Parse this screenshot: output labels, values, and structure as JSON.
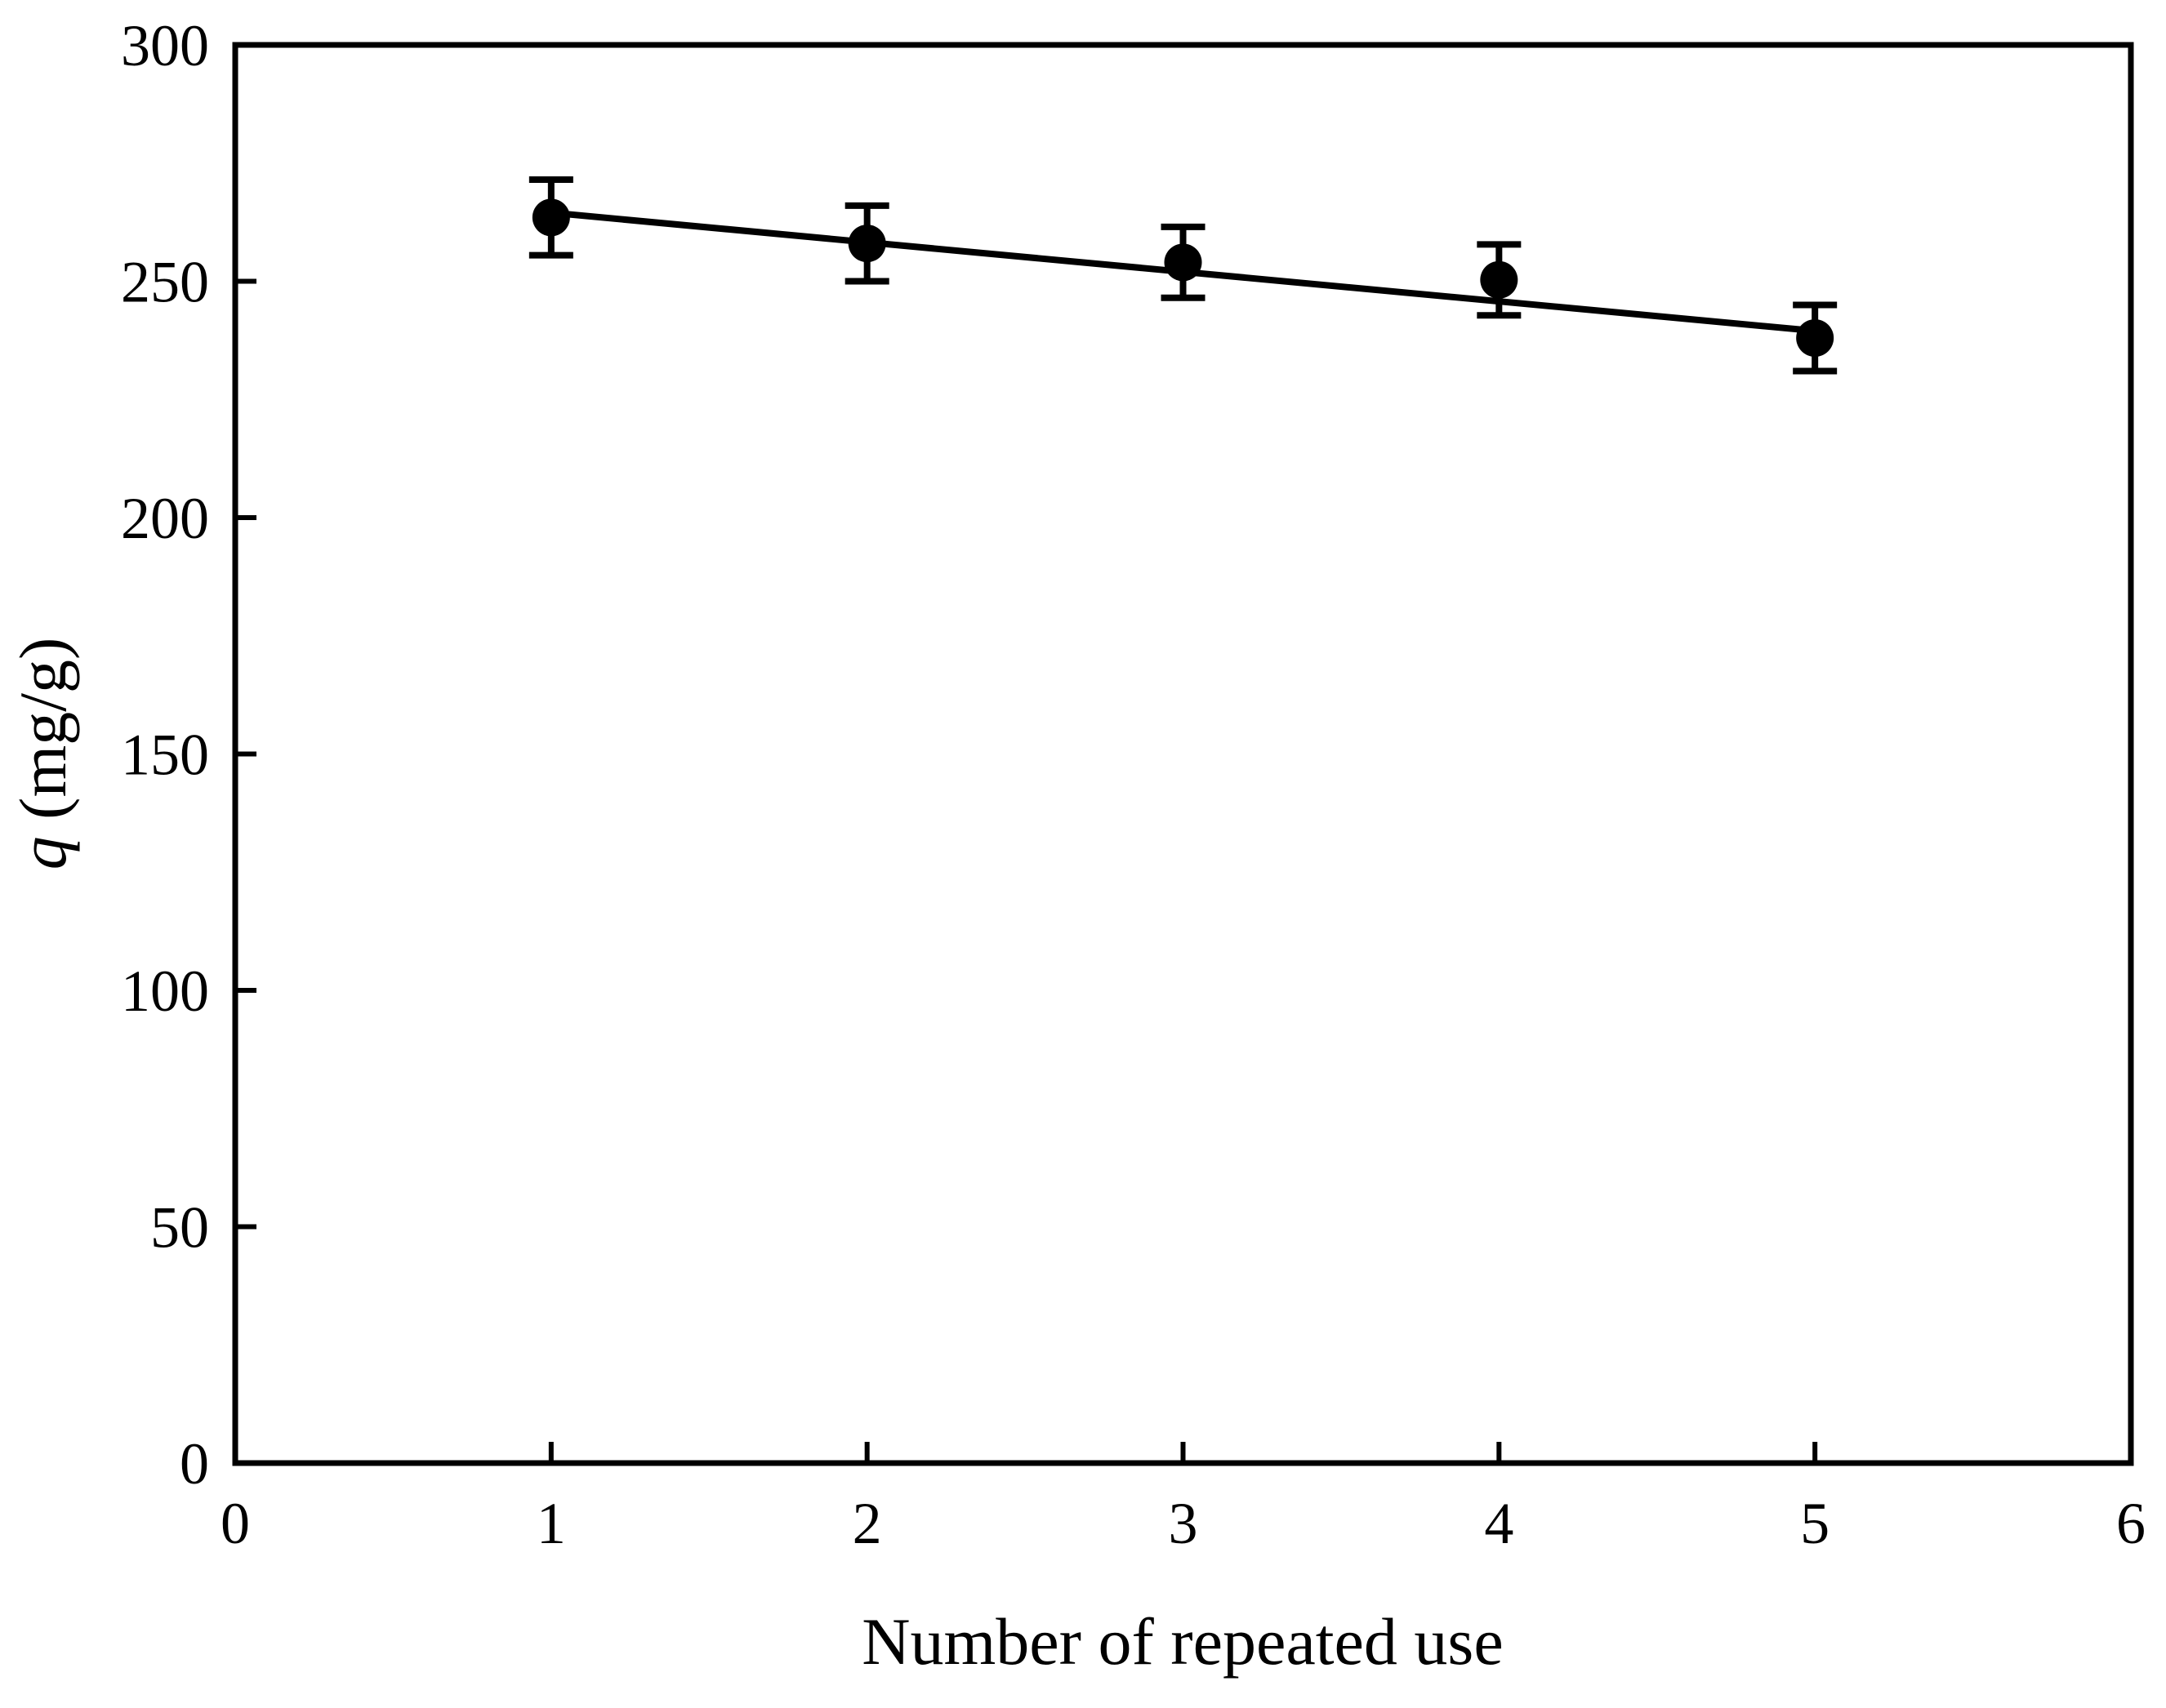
{
  "figure": {
    "background": "#ffffff",
    "ink_color": "#000000"
  },
  "chart_data": {
    "type": "scatter",
    "title": "",
    "xlabel": "Number of repeated use",
    "ylabel": "q (mg/g)",
    "ylabel_italic": "q",
    "ylabel_rest": " (mg/g)",
    "xlim": [
      0,
      6
    ],
    "ylim": [
      0,
      300
    ],
    "xticks": [
      0,
      1,
      2,
      3,
      4,
      5,
      6
    ],
    "yticks": [
      0,
      50,
      100,
      150,
      200,
      250,
      300
    ],
    "grid": false,
    "legend": false,
    "series": [
      {
        "name": "adsorption-capacity-per-reuse",
        "marker": "filled-circle",
        "color": "#000000",
        "x": [
          1,
          2,
          3,
          4,
          5
        ],
        "y": [
          263.5,
          258.0,
          254.0,
          250.3,
          238.0
        ],
        "y_err": [
          8,
          8,
          7.5,
          7.5,
          7
        ]
      }
    ],
    "trend_line": {
      "x1": 1,
      "y1": 264.5,
      "x2": 5,
      "y2": 239.5
    }
  }
}
